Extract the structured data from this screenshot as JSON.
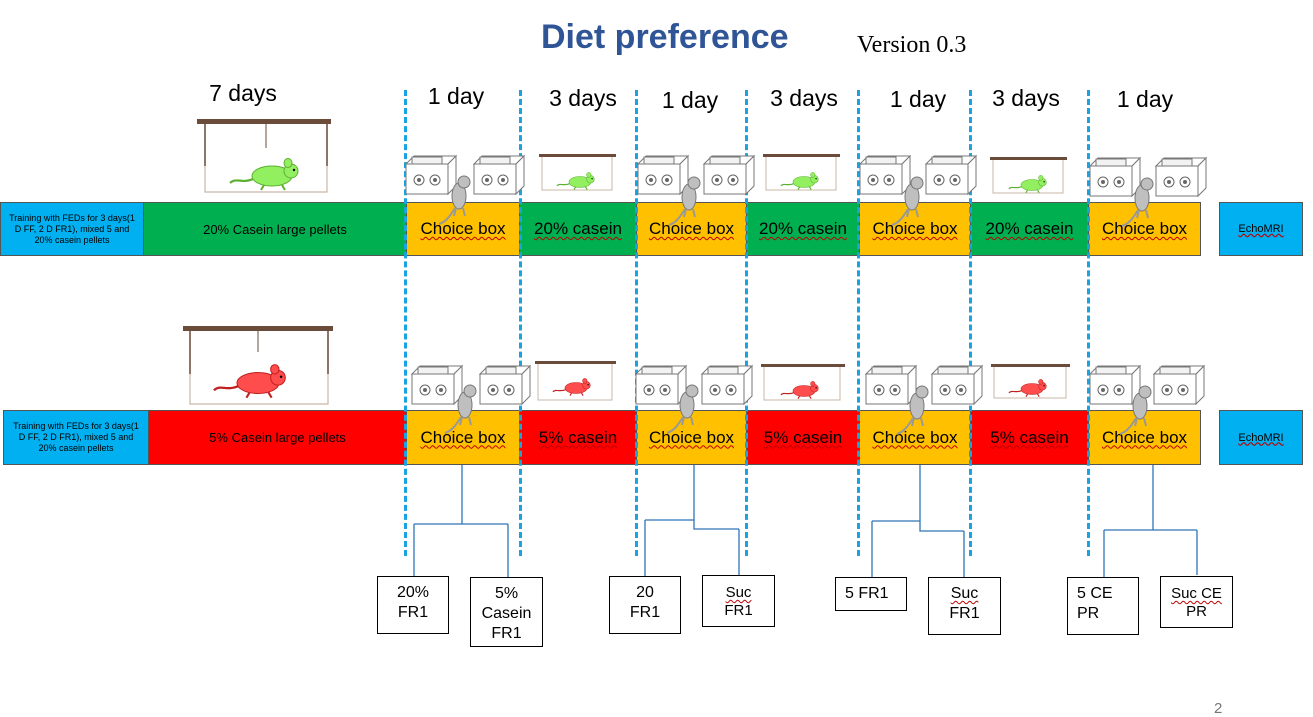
{
  "title": "Diet preference",
  "version": "Version 0.3",
  "durations": [
    "7 days",
    "1 day",
    "3 days",
    "1 day",
    "3 days",
    "1 day",
    "3 days",
    "1 day"
  ],
  "row_top": {
    "training": "Training with FEDs for 3 days(1 D FF, 2 D FR1), mixed 5 and 20% casein pellets",
    "base_diet": "20% Casein large pellets",
    "choice": "Choice box",
    "diet": "20% casein",
    "echo": "EchoMRI"
  },
  "row_bottom": {
    "training": "Training with FEDs for 3 days(1 D FF, 2 D FR1), mixed 5 and 20% casein pellets",
    "base_diet": "5% Casein large pellets",
    "choice": "Choice box",
    "diet": "5% casein",
    "echo": "EchoMRI"
  },
  "outcomes": [
    [
      "20%",
      "FR1"
    ],
    [
      "5%",
      "Casein",
      "FR1"
    ],
    [
      "20",
      "FR1"
    ],
    [
      "Suc",
      "FR1"
    ],
    [
      "5 FR1"
    ],
    [
      "Suc",
      "FR1"
    ],
    [
      "5 CE",
      "PR"
    ],
    [
      "Suc CE",
      "PR"
    ]
  ],
  "page_number": "2",
  "colors": {
    "title": "#2f5597",
    "training": "#00b0f0",
    "choice": "#ffc000",
    "high_casein": "#00b050",
    "low_casein": "#ff0000",
    "divider": "#1aa3e0",
    "mouse_green": "#92f060",
    "mouse_red": "#ff4d4d",
    "mouse_grey": "#bfbfbf"
  },
  "icons": [
    "cage-icon",
    "mouse-icon",
    "choice-box-icon",
    "fed-device-icon"
  ]
}
